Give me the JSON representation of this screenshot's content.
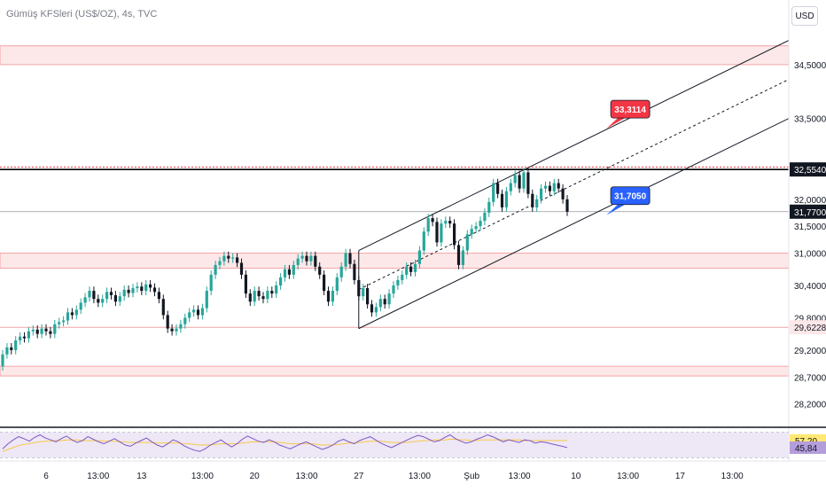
{
  "header": {
    "title": "Gümüş KFSleri (US$/OZ), 4s, TVC",
    "currency": "USD"
  },
  "colors": {
    "up": "#26a69a",
    "down": "#131722",
    "zone_fill": "#fde8e9",
    "zone_line": "#f5a3a7",
    "red_label": "#f23645",
    "blue_label": "#2962ff",
    "rsi_line": "#7e57c2",
    "rsi_ma": "#f7c948",
    "rsi_band": "#ede7f6",
    "axis_text": "#131722"
  },
  "chart_data": {
    "type": "candlestick",
    "price_axis": {
      "range": [
        27.8,
        35.7
      ],
      "ticks": [
        "34,5000",
        "33,5000",
        "32,0000",
        "31,5000",
        "31,0000",
        "30,4000",
        "29,8000",
        "29,2000",
        "28,7000",
        "28,2000"
      ],
      "tick_values": [
        34.5,
        33.5,
        32.0,
        31.5,
        31.0,
        30.4,
        29.8,
        29.2,
        28.7,
        28.2
      ]
    },
    "time_axis": {
      "labels": [
        "6",
        "13:00",
        "13",
        "13:00",
        "20",
        "13:00",
        "27",
        "13:00",
        "Şub",
        "13:00",
        "10",
        "13:00",
        "17",
        "13:00"
      ],
      "bar_index": [
        10,
        22,
        32,
        46,
        58,
        70,
        82,
        96,
        108,
        119,
        132,
        144,
        156,
        168
      ]
    },
    "candles": [
      [
        28.9,
        29.12
      ],
      [
        29.12,
        29.25
      ],
      [
        29.25,
        29.2
      ],
      [
        29.2,
        29.38
      ],
      [
        29.38,
        29.45
      ],
      [
        29.45,
        29.42
      ],
      [
        29.42,
        29.55
      ],
      [
        29.55,
        29.58
      ],
      [
        29.58,
        29.5
      ],
      [
        29.5,
        29.6
      ],
      [
        29.6,
        29.55
      ],
      [
        29.55,
        29.5
      ],
      [
        29.5,
        29.68
      ],
      [
        29.68,
        29.72
      ],
      [
        29.72,
        29.75
      ],
      [
        29.75,
        29.9
      ],
      [
        29.9,
        29.85
      ],
      [
        29.85,
        29.95
      ],
      [
        29.95,
        30.08
      ],
      [
        30.08,
        30.18
      ],
      [
        30.18,
        30.3
      ],
      [
        30.3,
        30.15
      ],
      [
        30.15,
        30.08
      ],
      [
        30.08,
        30.15
      ],
      [
        30.15,
        30.28
      ],
      [
        30.28,
        30.22
      ],
      [
        30.22,
        30.1
      ],
      [
        30.1,
        30.2
      ],
      [
        30.2,
        30.32
      ],
      [
        30.32,
        30.26
      ],
      [
        30.26,
        30.35
      ],
      [
        30.35,
        30.38
      ],
      [
        30.38,
        30.3
      ],
      [
        30.3,
        30.42
      ],
      [
        30.42,
        30.36
      ],
      [
        30.36,
        30.28
      ],
      [
        30.28,
        30.15
      ],
      [
        30.15,
        29.85
      ],
      [
        29.85,
        29.6
      ],
      [
        29.6,
        29.55
      ],
      [
        29.55,
        29.6
      ],
      [
        29.6,
        29.68
      ],
      [
        29.68,
        29.8
      ],
      [
        29.8,
        29.9
      ],
      [
        29.9,
        29.95
      ],
      [
        29.95,
        29.85
      ],
      [
        29.85,
        29.98
      ],
      [
        29.98,
        30.3
      ],
      [
        30.3,
        30.6
      ],
      [
        30.6,
        30.78
      ],
      [
        30.78,
        30.85
      ],
      [
        30.85,
        30.95
      ],
      [
        30.95,
        30.9
      ],
      [
        30.9,
        30.92
      ],
      [
        30.92,
        30.82
      ],
      [
        30.82,
        30.6
      ],
      [
        30.6,
        30.25
      ],
      [
        30.25,
        30.1
      ],
      [
        30.1,
        30.3
      ],
      [
        30.3,
        30.2
      ],
      [
        30.2,
        30.15
      ],
      [
        30.15,
        30.3
      ],
      [
        30.3,
        30.25
      ],
      [
        30.25,
        30.4
      ],
      [
        30.4,
        30.55
      ],
      [
        30.55,
        30.7
      ],
      [
        30.7,
        30.6
      ],
      [
        30.6,
        30.78
      ],
      [
        30.78,
        30.9
      ],
      [
        30.9,
        30.95
      ],
      [
        30.95,
        30.85
      ],
      [
        30.85,
        30.95
      ],
      [
        30.95,
        30.75
      ],
      [
        30.75,
        30.6
      ],
      [
        30.6,
        30.3
      ],
      [
        30.3,
        30.1
      ],
      [
        30.1,
        30.3
      ],
      [
        30.3,
        30.55
      ],
      [
        30.55,
        30.75
      ],
      [
        30.75,
        31.0
      ],
      [
        31.0,
        30.8
      ],
      [
        30.8,
        30.5
      ],
      [
        30.5,
        30.2
      ],
      [
        30.2,
        30.35
      ],
      [
        30.35,
        30.05
      ],
      [
        30.05,
        29.9
      ],
      [
        29.9,
        30.0
      ],
      [
        30.0,
        30.15
      ],
      [
        30.15,
        30.05
      ],
      [
        30.05,
        30.25
      ],
      [
        30.25,
        30.4
      ],
      [
        30.4,
        30.5
      ],
      [
        30.5,
        30.6
      ],
      [
        30.6,
        30.75
      ],
      [
        30.75,
        30.65
      ],
      [
        30.65,
        30.8
      ],
      [
        30.8,
        31.05
      ],
      [
        31.05,
        31.4
      ],
      [
        31.4,
        31.65
      ],
      [
        31.65,
        31.58
      ],
      [
        31.58,
        31.2
      ],
      [
        31.2,
        31.55
      ],
      [
        31.55,
        31.6
      ],
      [
        31.6,
        31.55
      ],
      [
        31.55,
        31.15
      ],
      [
        31.15,
        30.78
      ],
      [
        30.78,
        31.05
      ],
      [
        31.05,
        31.35
      ],
      [
        31.35,
        31.45
      ],
      [
        31.45,
        31.5
      ],
      [
        31.5,
        31.6
      ],
      [
        31.6,
        31.75
      ],
      [
        31.75,
        31.95
      ],
      [
        31.95,
        32.3
      ],
      [
        32.3,
        32.1
      ],
      [
        32.1,
        31.85
      ],
      [
        31.85,
        32.15
      ],
      [
        32.15,
        32.3
      ],
      [
        32.3,
        32.45
      ],
      [
        32.45,
        32.2
      ],
      [
        32.2,
        32.5
      ],
      [
        32.5,
        32.1
      ],
      [
        32.1,
        31.85
      ],
      [
        31.85,
        32.0
      ],
      [
        32.0,
        32.2
      ],
      [
        32.2,
        32.25
      ],
      [
        32.25,
        32.15
      ],
      [
        32.15,
        32.3
      ],
      [
        32.3,
        32.2
      ],
      [
        32.2,
        32.0
      ],
      [
        32.0,
        31.77
      ]
    ],
    "candle_wick": 0.08,
    "series": [
      {
        "name": "RSI",
        "values": [
          44,
          52,
          58,
          63,
          60,
          56,
          62,
          66,
          61,
          58,
          55,
          60,
          64,
          58,
          54,
          57,
          63,
          59,
          55,
          52,
          56,
          60,
          55,
          50,
          48,
          53,
          57,
          61,
          55,
          50,
          47,
          52,
          58,
          55,
          49,
          45,
          42,
          40,
          44,
          50,
          54,
          58,
          52,
          47,
          52,
          59,
          64,
          60,
          56,
          54,
          58,
          55,
          50,
          47,
          44,
          48,
          52,
          55,
          51,
          47,
          43,
          46,
          50,
          56,
          59,
          55,
          52,
          57,
          60,
          63,
          58,
          53,
          49,
          46,
          50,
          54,
          58,
          62,
          65,
          63,
          59,
          55,
          57,
          62,
          66,
          60,
          56,
          53,
          55,
          59,
          62,
          66,
          63,
          59,
          55,
          58,
          56,
          54,
          58,
          57,
          53,
          55,
          54,
          52,
          50,
          48,
          46
        ]
      },
      {
        "name": "RSI MA",
        "values": [
          40,
          43,
          46,
          49,
          51,
          52,
          54,
          55,
          56,
          56,
          57,
          57,
          58,
          58,
          58,
          57,
          57,
          57,
          57,
          56,
          56,
          56,
          55,
          55,
          54,
          54,
          54,
          54,
          54,
          53,
          53,
          53,
          53,
          53,
          52,
          52,
          51,
          50,
          50,
          50,
          51,
          52,
          52,
          52,
          52,
          53,
          54,
          55,
          55,
          55,
          55,
          55,
          54,
          53,
          52,
          52,
          52,
          52,
          52,
          51,
          50,
          50,
          50,
          51,
          52,
          53,
          53,
          54,
          55,
          56,
          56,
          56,
          55,
          54,
          54,
          54,
          54,
          55,
          56,
          57,
          57,
          58,
          58,
          58,
          59,
          59,
          58,
          58,
          57,
          57,
          58,
          58,
          58,
          58,
          58,
          58,
          58,
          58,
          57,
          57,
          57,
          57,
          57,
          57,
          57,
          57,
          57
        ]
      }
    ],
    "rsi_axis": {
      "range": [
        25,
        75
      ],
      "upper": 70,
      "lower": 30
    },
    "channel": {
      "lower": [
        {
          "bar": 82,
          "price": 29.6
        },
        {
          "bar": 181,
          "price": 33.5
        }
      ],
      "upper": [
        {
          "bar": 82,
          "price": 31.05
        },
        {
          "bar": 181,
          "price": 34.95
        }
      ]
    },
    "hlines": {
      "dotted_red": 32.6,
      "black": 32.554,
      "gray_current": 31.77
    },
    "zones": [
      [
        34.5,
        34.85
      ],
      [
        30.72,
        31.0
      ],
      [
        28.72,
        28.9
      ]
    ],
    "thin_red_line": 29.6228,
    "annotations": [
      {
        "text": "33,3114",
        "price": 33.3114,
        "bar": 139,
        "color": "red"
      },
      {
        "text": "31,7050",
        "price": 31.705,
        "bar": 139,
        "color": "blue"
      }
    ],
    "price_labels": [
      {
        "text": "32,5540",
        "price": 32.554,
        "kind": "black"
      },
      {
        "text": "31,7700",
        "price": 31.77,
        "kind": "black"
      },
      {
        "text": "29,6228",
        "price": 29.6228,
        "kind": "red"
      }
    ],
    "rsi_labels": [
      {
        "text": "57,20",
        "value": 57.2,
        "kind": "yellow"
      },
      {
        "text": "45,84",
        "value": 45.84,
        "kind": "purple"
      }
    ]
  }
}
